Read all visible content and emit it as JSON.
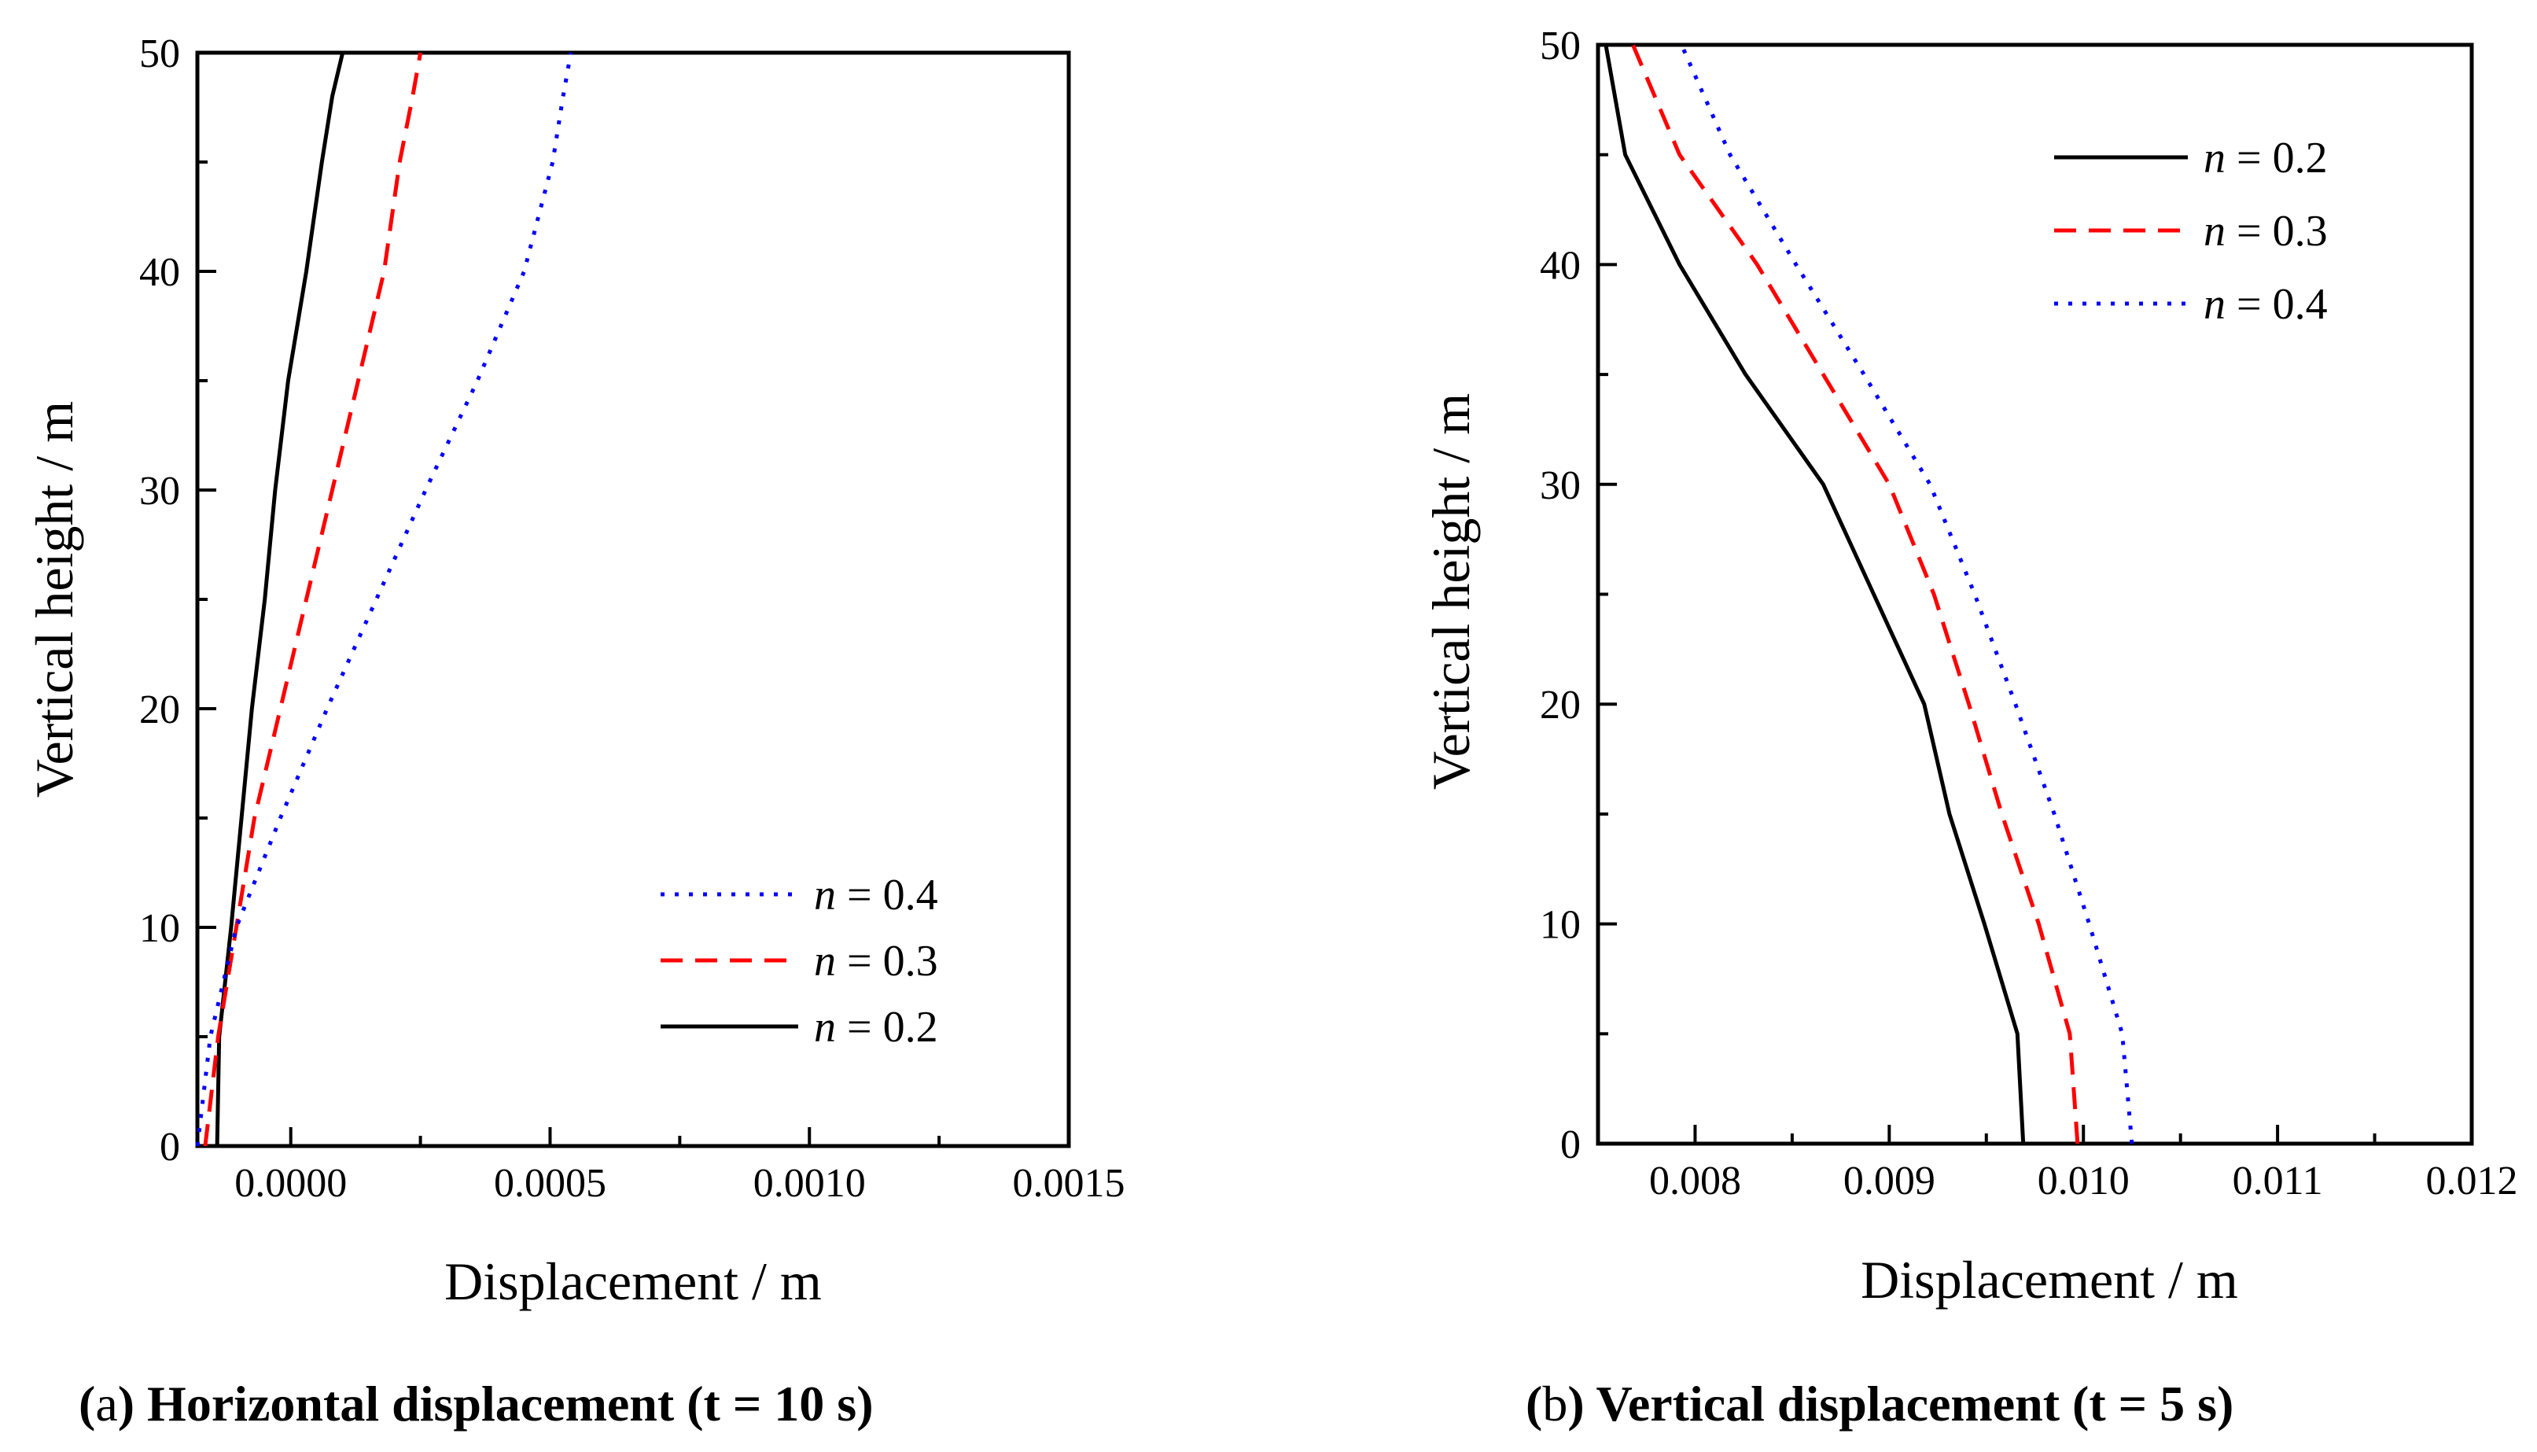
{
  "chart_data": [
    {
      "type": "line",
      "panel_label": "a",
      "caption": "Horizontal displacement (t = 10 s)",
      "xlabel": "Displacement / m",
      "ylabel": "Vertical height / m",
      "xlim": [
        -0.00018,
        0.0015
      ],
      "ylim": [
        0,
        50
      ],
      "xticks": [
        0.0,
        0.0005,
        0.001,
        0.0015
      ],
      "xtick_labels": [
        "0.0000",
        "0.0005",
        "0.0010",
        "0.0015"
      ],
      "yticks": [
        0,
        10,
        20,
        30,
        40,
        50
      ],
      "ytick_labels": [
        "0",
        "10",
        "20",
        "30",
        "40",
        "50"
      ],
      "legend_position": "bottom-right",
      "legend_order": [
        2,
        1,
        0
      ],
      "series": [
        {
          "name": "n = 0.2",
          "var": "n",
          "val": "= 0.2",
          "color": "#000000",
          "dash": "solid",
          "x": [
            -0.000142,
            -0.000138,
            -0.000115,
            -9.5e-05,
            -7.5e-05,
            -5e-05,
            -3e-05,
            -5e-06,
            3e-05,
            6e-05,
            8e-05,
            0.0001
          ],
          "y": [
            0,
            5,
            10,
            15,
            20,
            25,
            30,
            35,
            40,
            45,
            48,
            50
          ]
        },
        {
          "name": "n = 0.3",
          "var": "n",
          "val": "= 0.3",
          "color": "#ff0000",
          "dash": "dashed",
          "x": [
            -0.000165,
            -0.00014,
            -0.000105,
            -7e-05,
            -2e-05,
            3e-05,
            8e-05,
            0.00013,
            0.00018,
            0.00021,
            0.000235,
            0.00025
          ],
          "y": [
            0,
            5,
            10,
            15,
            20,
            25,
            30,
            35,
            40,
            45,
            48,
            50
          ]
        },
        {
          "name": "n = 0.4",
          "var": "n",
          "val": "= 0.4",
          "color": "#0000ff",
          "dash": "dotted",
          "x": [
            -0.00018,
            -0.000155,
            -0.000105,
            -2e-05,
            7e-05,
            0.000165,
            0.00026,
            0.00036,
            0.00045,
            0.000505,
            0.000525,
            0.00054
          ],
          "y": [
            0,
            5,
            10,
            15,
            20,
            25,
            30,
            35,
            40,
            45,
            48,
            50
          ]
        }
      ]
    },
    {
      "type": "line",
      "panel_label": "b",
      "caption": "Vertical displacement (t = 5 s)",
      "xlabel": "Displacement / m",
      "ylabel": "Vertical height / m",
      "xlim": [
        0.0075,
        0.012
      ],
      "ylim": [
        0,
        50
      ],
      "xticks": [
        0.008,
        0.009,
        0.01,
        0.011,
        0.012
      ],
      "xtick_labels": [
        "0.008",
        "0.009",
        "0.010",
        "0.011",
        "0.012"
      ],
      "yticks": [
        0,
        10,
        20,
        30,
        40,
        50
      ],
      "ytick_labels": [
        "0",
        "10",
        "20",
        "30",
        "40",
        "50"
      ],
      "legend_position": "top-right",
      "legend_order": [
        0,
        1,
        2
      ],
      "series": [
        {
          "name": "n = 0.2",
          "var": "n",
          "val": "= 0.2",
          "color": "#000000",
          "dash": "solid",
          "x": [
            0.00969,
            0.00966,
            0.00949,
            0.00931,
            0.00918,
            0.00892,
            0.00866,
            0.00826,
            0.00792,
            0.00764,
            0.00754
          ],
          "y": [
            0,
            5,
            10,
            15,
            20,
            25,
            30,
            35,
            40,
            45,
            50
          ]
        },
        {
          "name": "n = 0.3",
          "var": "n",
          "val": "= 0.3",
          "color": "#ff0000",
          "dash": "dashed",
          "x": [
            0.00997,
            0.00993,
            0.00977,
            0.00958,
            0.00941,
            0.00923,
            0.009,
            0.00866,
            0.00832,
            0.00792,
            0.00768
          ],
          "y": [
            0,
            5,
            10,
            15,
            20,
            25,
            30,
            35,
            40,
            45,
            50
          ]
        },
        {
          "name": "n = 0.4",
          "var": "n",
          "val": "= 0.4",
          "color": "#0000ff",
          "dash": "dotted",
          "x": [
            0.01025,
            0.0102,
            0.01003,
            0.00985,
            0.00965,
            0.00944,
            0.00921,
            0.00887,
            0.00852,
            0.00818,
            0.00793
          ],
          "y": [
            0,
            5,
            10,
            15,
            20,
            25,
            30,
            35,
            40,
            45,
            50
          ]
        }
      ]
    }
  ]
}
